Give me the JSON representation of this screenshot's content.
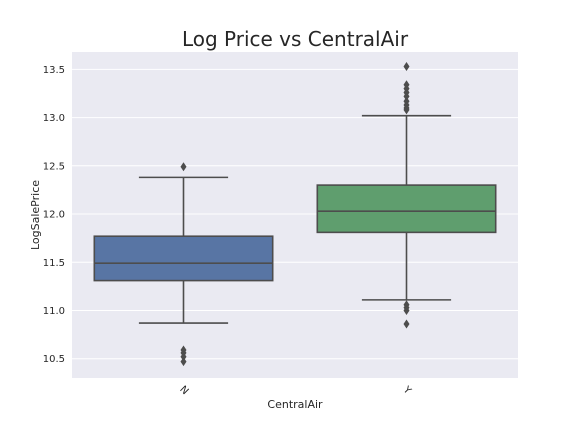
{
  "chart_data": {
    "type": "boxplot",
    "title": "Log Price vs CentralAir",
    "xlabel": "CentralAir",
    "ylabel": "LogSalePrice",
    "categories": [
      "N",
      "Y"
    ],
    "ylim": [
      10.3,
      13.68
    ],
    "yticks": [
      "10.5",
      "11.0",
      "11.5",
      "12.0",
      "12.5",
      "13.0",
      "13.5"
    ],
    "grid": true,
    "background": "#eaeaf2",
    "boxes": [
      {
        "category": "N",
        "color": "#5875a4",
        "whisker_low": 10.87,
        "q1": 11.31,
        "median": 11.49,
        "q3": 11.77,
        "whisker_high": 12.38,
        "outliers": [
          12.49,
          10.59,
          10.56,
          10.52,
          10.47
        ]
      },
      {
        "category": "Y",
        "color": "#5f9e6e",
        "whisker_low": 11.11,
        "q1": 11.81,
        "median": 12.03,
        "q3": 12.3,
        "whisker_high": 13.02,
        "outliers": [
          13.53,
          13.34,
          13.3,
          13.26,
          13.22,
          13.17,
          13.13,
          13.1,
          13.08,
          11.06,
          11.03,
          11.0,
          10.86
        ]
      }
    ]
  }
}
